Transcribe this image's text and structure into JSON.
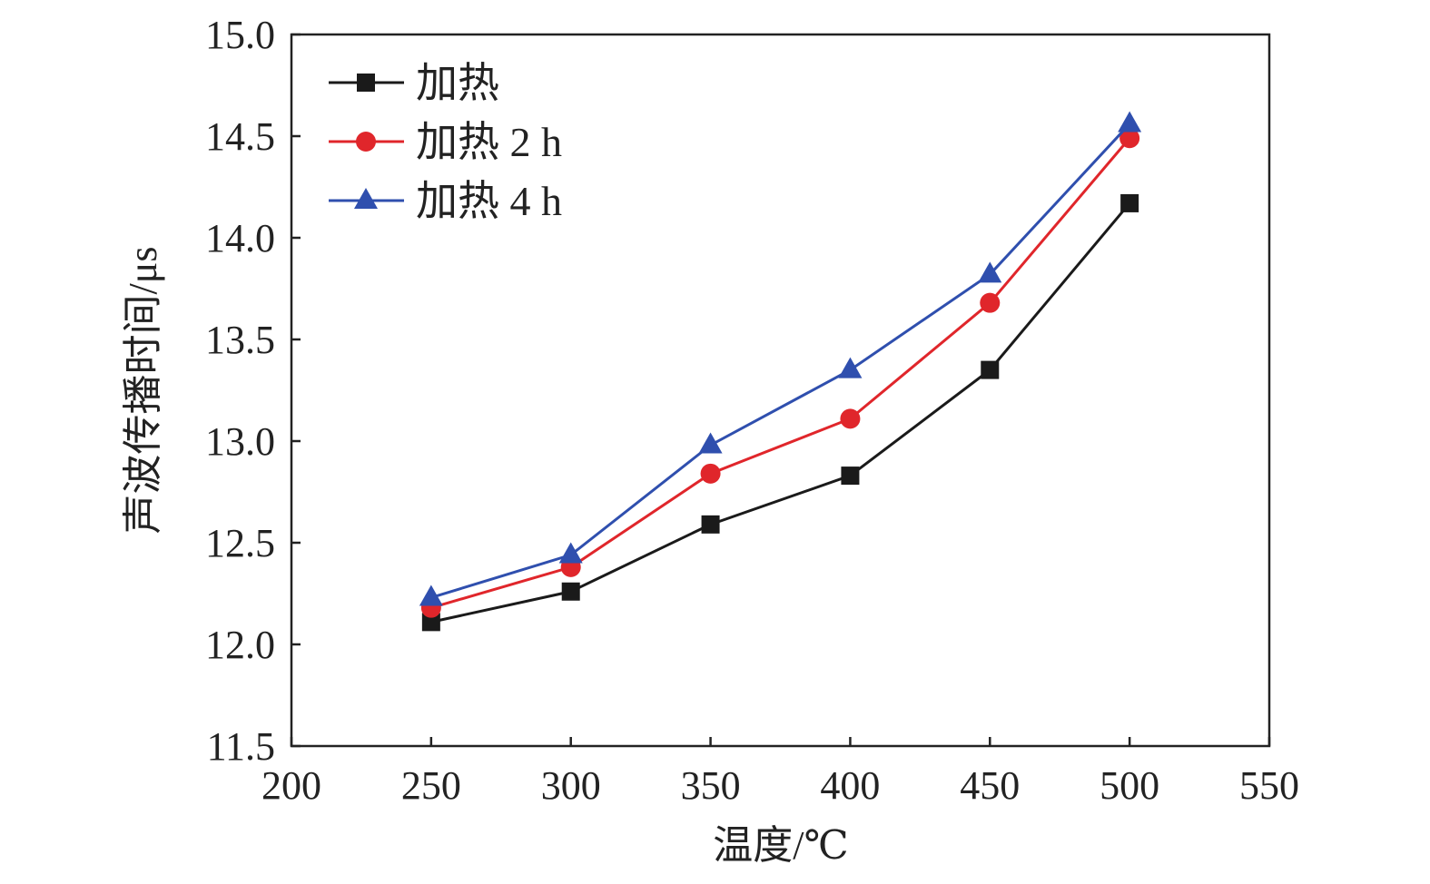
{
  "chart_data": {
    "type": "line",
    "title": "",
    "xlabel": "温度/℃",
    "ylabel": "声波传播时间/μs",
    "xlim": [
      200,
      550
    ],
    "ylim": [
      11.5,
      15.0
    ],
    "x_ticks": [
      "200",
      "250",
      "300",
      "350",
      "400",
      "450",
      "500",
      "550"
    ],
    "y_ticks": [
      "11.5",
      "12.0",
      "12.5",
      "13.0",
      "13.5",
      "14.0",
      "14.5",
      "15.0"
    ],
    "legend_position": "top-left",
    "grid": false,
    "x": [
      250,
      300,
      350,
      400,
      450,
      500
    ],
    "series": [
      {
        "name": "加热",
        "color": "#1a1a1a",
        "marker": "square",
        "values": [
          12.11,
          12.26,
          12.59,
          12.83,
          13.35,
          14.17
        ]
      },
      {
        "name": "加热 2 h",
        "color": "#e0262b",
        "marker": "circle",
        "values": [
          12.18,
          12.38,
          12.84,
          13.11,
          13.68,
          14.49
        ]
      },
      {
        "name": "加热 4 h",
        "color": "#2f4fae",
        "marker": "triangle",
        "values": [
          12.23,
          12.44,
          12.98,
          13.35,
          13.82,
          14.56
        ]
      }
    ]
  }
}
